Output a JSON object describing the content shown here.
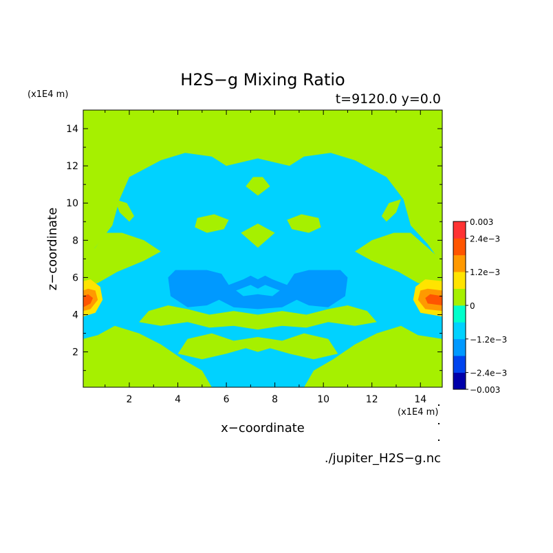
{
  "chart_data": {
    "type": "heatmap",
    "title": "H2S−g Mixing Ratio",
    "subtitle": "t=9120.0 y=0.0",
    "xlabel": "x−coordinate",
    "ylabel": "z−coordinate",
    "x_unit": "(x1E4 m)",
    "z_unit": "(x1E4 m)",
    "footer": "./jupiter_H2S−g.nc",
    "xlim": [
      0.1,
      14.9
    ],
    "ylim": [
      0.1,
      15
    ],
    "x_ticks": [
      2,
      4,
      6,
      8,
      10,
      12,
      14
    ],
    "y_ticks": [
      2,
      4,
      6,
      8,
      10,
      12,
      14
    ],
    "grid": false,
    "colorbar": {
      "levels": [
        -0.003,
        -0.0024,
        -0.0018,
        -0.0012,
        -0.0006,
        0,
        0.0006,
        0.0012,
        0.0018,
        0.0024,
        0.003
      ],
      "colors": [
        "#0000aa",
        "#0044ee",
        "#0099ff",
        "#00d2ff",
        "#00ffcc",
        "#a6f000",
        "#ffe400",
        "#ff9900",
        "#ff5500",
        "#ff3333"
      ],
      "tick_labels": [
        "0.003",
        "2.4e−3",
        "1.2e−3",
        "0",
        "−1.2e−3",
        "−2.4e−3",
        "−0.003"
      ]
    },
    "background_value": 0.0003,
    "regions": [
      {
        "level": "-0.0009",
        "points": [
          [
            3.3,
            12.3
          ],
          [
            4.3,
            12.7
          ],
          [
            5.4,
            12.5
          ],
          [
            6.0,
            12.0
          ],
          [
            7.3,
            12.4
          ],
          [
            8.6,
            12.0
          ],
          [
            9.2,
            12.5
          ],
          [
            10.3,
            12.7
          ],
          [
            11.3,
            12.3
          ],
          [
            12.6,
            11.4
          ],
          [
            13.3,
            10.2
          ],
          [
            13.6,
            8.8
          ],
          [
            14.3,
            7.8
          ],
          [
            14.9,
            6.7
          ],
          [
            14.9,
            2.7
          ],
          [
            13.9,
            2.9
          ],
          [
            13.2,
            3.4
          ],
          [
            12.2,
            3.0
          ],
          [
            11.3,
            2.4
          ],
          [
            10.4,
            1.6
          ],
          [
            9.6,
            1.0
          ],
          [
            9.2,
            0.1
          ],
          [
            5.4,
            0.1
          ],
          [
            5.0,
            1.0
          ],
          [
            4.2,
            1.6
          ],
          [
            3.3,
            2.4
          ],
          [
            2.4,
            3.0
          ],
          [
            1.4,
            3.4
          ],
          [
            0.7,
            2.9
          ],
          [
            0.1,
            2.7
          ],
          [
            0.1,
            6.7
          ],
          [
            0.7,
            7.8
          ],
          [
            1.3,
            8.8
          ],
          [
            1.6,
            10.2
          ],
          [
            2.0,
            11.4
          ]
        ]
      },
      {
        "level": "0.0003",
        "points": [
          [
            0.1,
            6.9
          ],
          [
            0.6,
            7.6
          ],
          [
            1.0,
            8.4
          ],
          [
            1.7,
            8.4
          ],
          [
            2.6,
            8.0
          ],
          [
            3.3,
            7.4
          ],
          [
            2.6,
            6.9
          ],
          [
            1.5,
            6.3
          ],
          [
            0.7,
            5.7
          ],
          [
            0.1,
            5.5
          ]
        ]
      },
      {
        "level": "0.0003",
        "points": [
          [
            14.9,
            6.9
          ],
          [
            14.3,
            7.6
          ],
          [
            13.6,
            8.4
          ],
          [
            12.9,
            8.4
          ],
          [
            12.0,
            8.0
          ],
          [
            11.3,
            7.4
          ],
          [
            12.0,
            6.9
          ],
          [
            13.1,
            6.3
          ],
          [
            13.9,
            5.7
          ],
          [
            14.9,
            5.5
          ]
        ]
      },
      {
        "level": "0.0003",
        "points": [
          [
            1.4,
            10.2
          ],
          [
            1.9,
            10.0
          ],
          [
            2.2,
            9.3
          ],
          [
            2.0,
            9.0
          ],
          [
            1.6,
            9.5
          ]
        ]
      },
      {
        "level": "0.0003",
        "points": [
          [
            13.2,
            10.2
          ],
          [
            12.7,
            10.0
          ],
          [
            12.4,
            9.3
          ],
          [
            12.6,
            9.0
          ],
          [
            13.0,
            9.5
          ]
        ]
      },
      {
        "level": "0.0003",
        "points": [
          [
            4.8,
            9.2
          ],
          [
            5.5,
            9.4
          ],
          [
            6.1,
            9.1
          ],
          [
            5.9,
            8.6
          ],
          [
            5.2,
            8.4
          ],
          [
            4.7,
            8.7
          ]
        ]
      },
      {
        "level": "0.0003",
        "points": [
          [
            9.8,
            9.2
          ],
          [
            9.1,
            9.4
          ],
          [
            8.5,
            9.1
          ],
          [
            8.7,
            8.6
          ],
          [
            9.4,
            8.4
          ],
          [
            9.9,
            8.7
          ]
        ]
      },
      {
        "level": "0.0003",
        "points": [
          [
            6.8,
            10.9
          ],
          [
            7.3,
            10.4
          ],
          [
            7.8,
            10.9
          ],
          [
            7.5,
            11.4
          ],
          [
            7.1,
            11.4
          ]
        ]
      },
      {
        "level": "0.0003",
        "points": [
          [
            6.6,
            8.4
          ],
          [
            7.3,
            7.6
          ],
          [
            8.0,
            8.4
          ],
          [
            7.3,
            8.9
          ]
        ]
      },
      {
        "level": "0.0003",
        "points": [
          [
            2.4,
            3.6
          ],
          [
            3.3,
            3.4
          ],
          [
            4.4,
            3.6
          ],
          [
            5.3,
            3.3
          ],
          [
            6.3,
            3.4
          ],
          [
            7.3,
            3.2
          ],
          [
            8.3,
            3.4
          ],
          [
            9.3,
            3.3
          ],
          [
            10.2,
            3.6
          ],
          [
            11.3,
            3.4
          ],
          [
            12.2,
            3.6
          ],
          [
            11.8,
            4.2
          ],
          [
            11.0,
            4.5
          ],
          [
            10.2,
            4.3
          ],
          [
            9.3,
            4.0
          ],
          [
            8.3,
            4.2
          ],
          [
            7.3,
            4.0
          ],
          [
            6.3,
            4.2
          ],
          [
            5.3,
            4.0
          ],
          [
            4.4,
            4.3
          ],
          [
            3.6,
            4.5
          ],
          [
            2.8,
            4.2
          ]
        ]
      },
      {
        "level": "0.0003",
        "points": [
          [
            4.0,
            1.9
          ],
          [
            5.0,
            1.6
          ],
          [
            6.0,
            1.9
          ],
          [
            6.8,
            2.2
          ],
          [
            7.3,
            2.0
          ],
          [
            7.8,
            2.2
          ],
          [
            8.6,
            1.9
          ],
          [
            9.6,
            1.6
          ],
          [
            10.6,
            1.9
          ],
          [
            10.2,
            2.7
          ],
          [
            9.2,
            3.0
          ],
          [
            8.3,
            2.6
          ],
          [
            7.3,
            2.8
          ],
          [
            6.3,
            2.6
          ],
          [
            5.4,
            3.0
          ],
          [
            4.4,
            2.7
          ]
        ]
      },
      {
        "level": "0.0003",
        "points": [
          [
            0.1,
            1.8
          ],
          [
            1.0,
            1.5
          ],
          [
            1.8,
            1.9
          ],
          [
            1.4,
            2.4
          ],
          [
            0.6,
            2.3
          ],
          [
            0.1,
            2.4
          ]
        ]
      },
      {
        "level": "0.0003",
        "points": [
          [
            14.9,
            1.8
          ],
          [
            13.6,
            1.5
          ],
          [
            12.8,
            1.9
          ],
          [
            13.2,
            2.4
          ],
          [
            14.0,
            2.3
          ],
          [
            14.9,
            2.4
          ]
        ]
      },
      {
        "level": "-0.0015",
        "points": [
          [
            3.6,
            6.0
          ],
          [
            3.9,
            6.4
          ],
          [
            5.2,
            6.4
          ],
          [
            5.8,
            6.2
          ],
          [
            6.1,
            5.6
          ],
          [
            6.7,
            5.9
          ],
          [
            7.0,
            6.1
          ],
          [
            7.3,
            5.9
          ],
          [
            7.6,
            6.1
          ],
          [
            7.9,
            5.9
          ],
          [
            8.5,
            5.6
          ],
          [
            8.8,
            6.2
          ],
          [
            9.4,
            6.4
          ],
          [
            10.7,
            6.4
          ],
          [
            11.0,
            6.0
          ],
          [
            10.9,
            5.0
          ],
          [
            10.2,
            4.4
          ],
          [
            9.4,
            4.5
          ],
          [
            8.9,
            4.8
          ],
          [
            8.3,
            4.4
          ],
          [
            7.3,
            4.3
          ],
          [
            6.3,
            4.4
          ],
          [
            5.7,
            4.8
          ],
          [
            5.2,
            4.5
          ],
          [
            4.4,
            4.4
          ],
          [
            3.7,
            5.0
          ]
        ]
      },
      {
        "level": "-0.0009",
        "points": [
          [
            6.4,
            5.3
          ],
          [
            7.0,
            5.6
          ],
          [
            7.3,
            5.4
          ],
          [
            7.6,
            5.6
          ],
          [
            8.2,
            5.3
          ],
          [
            7.9,
            5.0
          ],
          [
            7.3,
            5.1
          ],
          [
            6.7,
            5.0
          ]
        ]
      },
      {
        "level": "0.0009",
        "points": [
          [
            0.1,
            3.9
          ],
          [
            0.6,
            4.1
          ],
          [
            0.9,
            4.8
          ],
          [
            0.8,
            5.5
          ],
          [
            0.4,
            5.9
          ],
          [
            0.1,
            5.8
          ]
        ]
      },
      {
        "level": "0.0015",
        "points": [
          [
            0.1,
            4.2
          ],
          [
            0.4,
            4.3
          ],
          [
            0.7,
            4.8
          ],
          [
            0.6,
            5.3
          ],
          [
            0.3,
            5.4
          ],
          [
            0.1,
            5.3
          ]
        ]
      },
      {
        "level": "0.0021",
        "points": [
          [
            0.1,
            4.4
          ],
          [
            0.4,
            4.6
          ],
          [
            0.5,
            4.9
          ],
          [
            0.3,
            5.1
          ],
          [
            0.1,
            5.0
          ]
        ]
      },
      {
        "level": "0.0009",
        "points": [
          [
            14.9,
            3.9
          ],
          [
            14.0,
            4.1
          ],
          [
            13.7,
            4.8
          ],
          [
            13.8,
            5.5
          ],
          [
            14.2,
            5.9
          ],
          [
            14.9,
            5.8
          ]
        ]
      },
      {
        "level": "0.0015",
        "points": [
          [
            14.9,
            4.2
          ],
          [
            14.2,
            4.3
          ],
          [
            13.9,
            4.8
          ],
          [
            14.0,
            5.3
          ],
          [
            14.3,
            5.4
          ],
          [
            14.9,
            5.3
          ]
        ]
      },
      {
        "level": "0.0021",
        "points": [
          [
            14.9,
            4.5
          ],
          [
            14.3,
            4.6
          ],
          [
            14.2,
            4.9
          ],
          [
            14.4,
            5.1
          ],
          [
            14.9,
            5.0
          ]
        ]
      }
    ]
  }
}
